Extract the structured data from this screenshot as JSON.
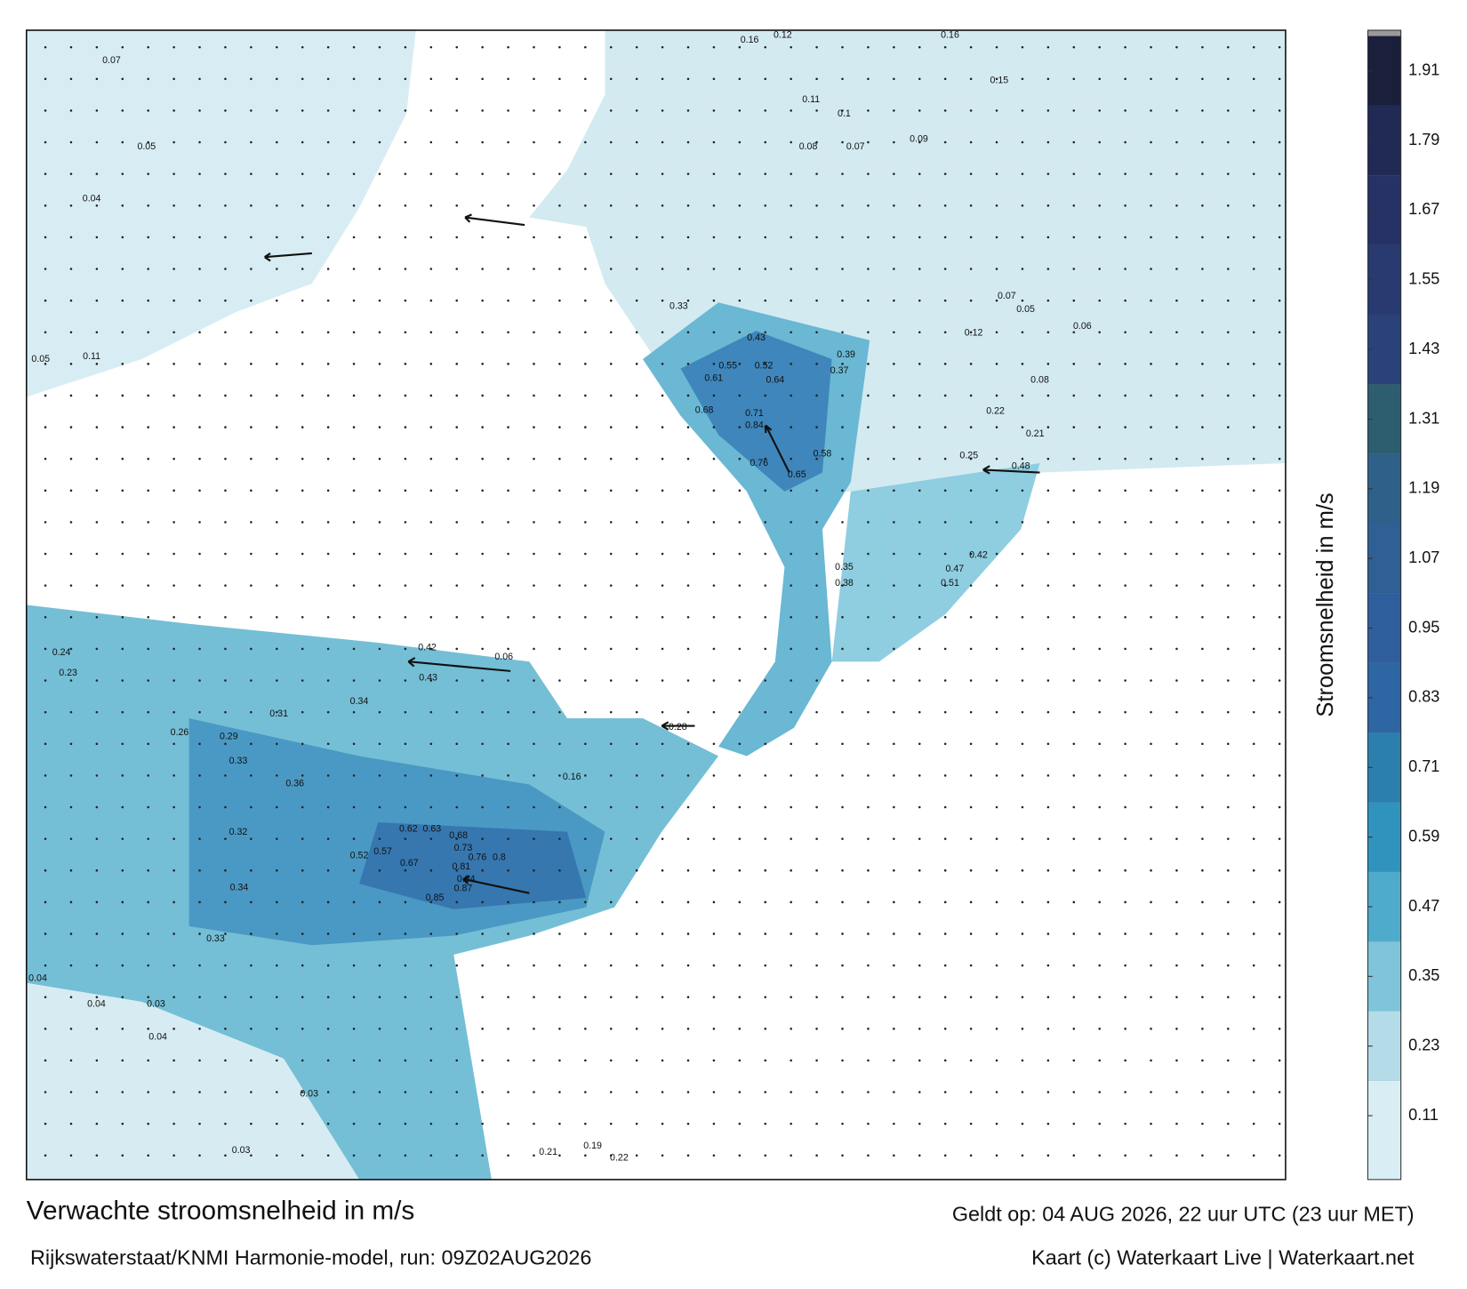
{
  "map": {
    "title": "Verwachte stroomsnelheid in m/s",
    "valid_time": "Geldt op: 04 AUG 2026, 22 uur UTC (23 uur MET)",
    "source": "Rijkswaterstaat/KNMI Harmonie-model, run: 09Z02AUG2026",
    "credit": "Kaart (c) Waterkaart Live | Waterkaart.net",
    "colorbar": {
      "label": "Stroomsnelheid in m/s",
      "lim": [
        0,
        1.98
      ],
      "ticks": [
        0.11,
        0.23,
        0.35,
        0.47,
        0.59,
        0.71,
        0.83,
        0.95,
        1.07,
        1.19,
        1.31,
        1.43,
        1.55,
        1.67,
        1.79,
        1.91
      ],
      "colors": [
        "#d9eef4",
        "#b3dce8",
        "#7fc4da",
        "#4fabcb",
        "#2f93bd",
        "#2b7fae",
        "#2d66a2",
        "#2f5e9d",
        "#2f5f94",
        "#2e6089",
        "#2d5e6f",
        "#2a4279",
        "#283a70",
        "#263265",
        "#202a55",
        "#1a1f3c"
      ]
    },
    "speed_labels": [
      0.84,
      0.71,
      0.68,
      0.61,
      0.55,
      0.52,
      0.64,
      0.43,
      0.39,
      0.37,
      0.33,
      0.76,
      0.65,
      0.58,
      0.48,
      0.42,
      0.47,
      0.51,
      0.35,
      0.38,
      0.62,
      0.63,
      0.68,
      0.73,
      0.81,
      0.76,
      0.8,
      0.84,
      0.87,
      0.85,
      0.67,
      0.57,
      0.52,
      0.36,
      0.31,
      0.34,
      0.33,
      0.29,
      0.26,
      0.32,
      0.34,
      0.33,
      0.24,
      0.23,
      0.42,
      0.43,
      0.06,
      0.28,
      0.16,
      0.22,
      0.25,
      0.21,
      0.16,
      0.12,
      0.16,
      0.15,
      0.1,
      0.11,
      0.08,
      0.07,
      0.09,
      0.07,
      0.05,
      0.04,
      0.11,
      0.05,
      0.04,
      0.04,
      0.03,
      0.04,
      0.03,
      0.03,
      0.21,
      0.19,
      0.22,
      0.08,
      0.12,
      0.06,
      0.05,
      0.07
    ]
  }
}
